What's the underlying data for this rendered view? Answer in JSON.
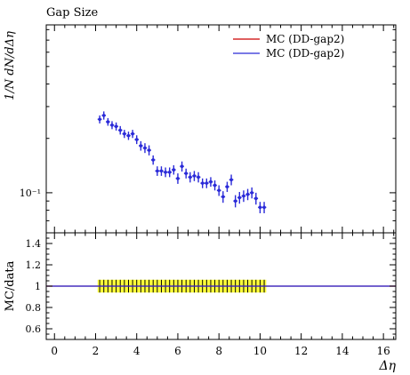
{
  "chart_data": [
    {
      "panel": "main",
      "type": "scatter",
      "title": "Gap Size",
      "ylabel": "1/N dN/dΔη",
      "xlabel": "",
      "yscale": "log",
      "ylim": [
        0.06,
        0.85
      ],
      "xlim": [
        -0.4,
        16.6
      ],
      "yticks": [
        {
          "value": 0.1,
          "label": "10⁻¹"
        }
      ],
      "legend_position": "top-right",
      "series": [
        {
          "name": "MC (DD-gap2)",
          "color": "#cc0000",
          "x": [],
          "y": [],
          "yerr": []
        },
        {
          "name": "MC (DD-gap2)",
          "color": "#2a2ad8",
          "x": [
            2.2,
            2.4,
            2.6,
            2.8,
            3.0,
            3.2,
            3.4,
            3.6,
            3.8,
            4.0,
            4.2,
            4.4,
            4.6,
            4.8,
            5.0,
            5.2,
            5.4,
            5.6,
            5.8,
            6.0,
            6.2,
            6.4,
            6.6,
            6.8,
            7.0,
            7.2,
            7.4,
            7.6,
            7.8,
            8.0,
            8.2,
            8.4,
            8.6,
            8.8,
            9.0,
            9.2,
            9.4,
            9.6,
            9.8,
            10.0,
            10.2
          ],
          "y": [
            0.255,
            0.268,
            0.247,
            0.237,
            0.233,
            0.222,
            0.212,
            0.207,
            0.212,
            0.197,
            0.182,
            0.177,
            0.172,
            0.152,
            0.132,
            0.132,
            0.13,
            0.13,
            0.134,
            0.12,
            0.14,
            0.128,
            0.122,
            0.124,
            0.122,
            0.113,
            0.113,
            0.115,
            0.11,
            0.103,
            0.095,
            0.108,
            0.118,
            0.09,
            0.094,
            0.096,
            0.098,
            0.1,
            0.093,
            0.083,
            0.083
          ],
          "yerr": [
            0.013,
            0.014,
            0.012,
            0.012,
            0.012,
            0.012,
            0.011,
            0.011,
            0.011,
            0.011,
            0.011,
            0.011,
            0.011,
            0.009,
            0.008,
            0.008,
            0.008,
            0.008,
            0.008,
            0.008,
            0.009,
            0.008,
            0.008,
            0.008,
            0.008,
            0.007,
            0.007,
            0.007,
            0.007,
            0.007,
            0.007,
            0.007,
            0.008,
            0.007,
            0.007,
            0.007,
            0.007,
            0.007,
            0.007,
            0.006,
            0.006
          ]
        }
      ]
    },
    {
      "panel": "ratio",
      "type": "line",
      "title": "",
      "ylabel": "MC/data",
      "xlabel": "Δη",
      "ylim": [
        0.5,
        1.5
      ],
      "xlim": [
        -0.4,
        16.6
      ],
      "xticks": [
        0,
        2,
        4,
        6,
        8,
        10,
        12,
        14,
        16
      ],
      "yticks": [
        0.6,
        0.8,
        1.0,
        1.2,
        1.4
      ],
      "ytick_labels": [
        "0.6",
        "0.8",
        "1",
        "1.2",
        "1.4"
      ],
      "band": {
        "color": "#ffff3a",
        "x_from": 2.1,
        "x_to": 10.3,
        "lower": 0.94,
        "upper": 1.06
      },
      "series": [
        {
          "name": "MC (DD-gap2)",
          "color": "#cc0000",
          "y": 1.0
        },
        {
          "name": "MC (DD-gap2)",
          "color": "#2a2ad8",
          "y": 1.0
        }
      ]
    }
  ]
}
